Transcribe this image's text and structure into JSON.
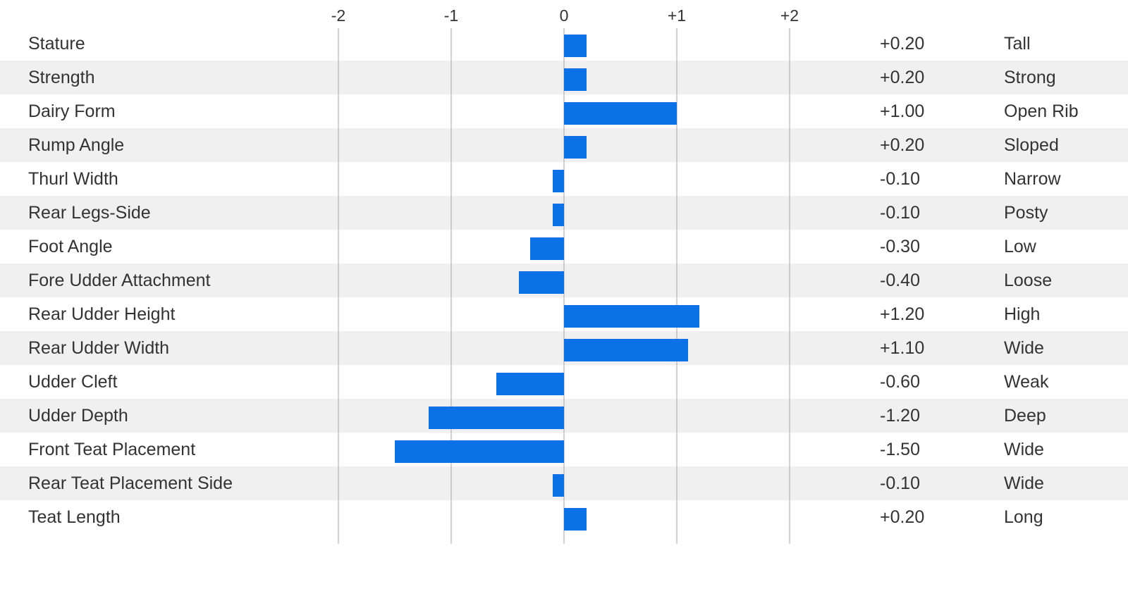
{
  "chart_data": {
    "type": "bar",
    "orientation": "horizontal",
    "x_ticks": [
      "-2",
      "-1",
      "0",
      "+1",
      "+2"
    ],
    "xlim": [
      -2,
      2
    ],
    "grid": true,
    "rows": [
      {
        "trait": "Stature",
        "value": 0.2,
        "value_label": "+0.20",
        "descriptor": "Tall"
      },
      {
        "trait": "Strength",
        "value": 0.2,
        "value_label": "+0.20",
        "descriptor": "Strong"
      },
      {
        "trait": "Dairy Form",
        "value": 1.0,
        "value_label": "+1.00",
        "descriptor": "Open Rib"
      },
      {
        "trait": "Rump Angle",
        "value": 0.2,
        "value_label": "+0.20",
        "descriptor": "Sloped"
      },
      {
        "trait": "Thurl Width",
        "value": -0.1,
        "value_label": "-0.10",
        "descriptor": "Narrow"
      },
      {
        "trait": "Rear Legs-Side",
        "value": -0.1,
        "value_label": "-0.10",
        "descriptor": "Posty"
      },
      {
        "trait": "Foot Angle",
        "value": -0.3,
        "value_label": "-0.30",
        "descriptor": "Low"
      },
      {
        "trait": "Fore Udder Attachment",
        "value": -0.4,
        "value_label": "-0.40",
        "descriptor": "Loose"
      },
      {
        "trait": "Rear Udder Height",
        "value": 1.2,
        "value_label": "+1.20",
        "descriptor": "High"
      },
      {
        "trait": "Rear Udder Width",
        "value": 1.1,
        "value_label": "+1.10",
        "descriptor": "Wide"
      },
      {
        "trait": "Udder Cleft",
        "value": -0.6,
        "value_label": "-0.60",
        "descriptor": "Weak"
      },
      {
        "trait": "Udder Depth",
        "value": -1.2,
        "value_label": "-1.20",
        "descriptor": "Deep"
      },
      {
        "trait": "Front Teat Placement",
        "value": -1.5,
        "value_label": "-1.50",
        "descriptor": "Wide"
      },
      {
        "trait": "Rear Teat Placement Side",
        "value": -0.1,
        "value_label": "-0.10",
        "descriptor": "Wide"
      },
      {
        "trait": "Teat Length",
        "value": 0.2,
        "value_label": "+0.20",
        "descriptor": "Long"
      }
    ],
    "colors": {
      "bar": "#0a72e6",
      "row_stripe": "#f0f0f0",
      "gridline": "#b4b4b4",
      "text": "#333333"
    }
  }
}
